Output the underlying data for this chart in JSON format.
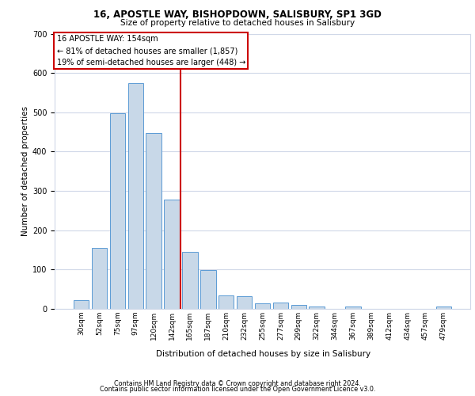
{
  "title1": "16, APOSTLE WAY, BISHOPDOWN, SALISBURY, SP1 3GD",
  "title2": "Size of property relative to detached houses in Salisbury",
  "xlabel": "Distribution of detached houses by size in Salisbury",
  "ylabel": "Number of detached properties",
  "footnote1": "Contains HM Land Registry data © Crown copyright and database right 2024.",
  "footnote2": "Contains public sector information licensed under the Open Government Licence v3.0.",
  "annotation_line1": "16 APOSTLE WAY: 154sqm",
  "annotation_line2": "← 81% of detached houses are smaller (1,857)",
  "annotation_line3": "19% of semi-detached houses are larger (448) →",
  "property_size": 154,
  "bar_color": "#c8d8e8",
  "bar_edge_color": "#5b9bd5",
  "vline_color": "#cc0000",
  "annotation_box_edge": "#cc0000",
  "grid_color": "#d0d8e8",
  "bar_labels": [
    "30sqm",
    "52sqm",
    "75sqm",
    "97sqm",
    "120sqm",
    "142sqm",
    "165sqm",
    "187sqm",
    "210sqm",
    "232sqm",
    "255sqm",
    "277sqm",
    "299sqm",
    "322sqm",
    "344sqm",
    "367sqm",
    "389sqm",
    "412sqm",
    "434sqm",
    "457sqm",
    "479sqm"
  ],
  "bar_values": [
    22,
    155,
    497,
    575,
    447,
    278,
    145,
    99,
    35,
    33,
    15,
    16,
    11,
    6,
    0,
    7,
    0,
    0,
    0,
    0,
    7
  ],
  "ylim": [
    0,
    700
  ],
  "yticks": [
    0,
    100,
    200,
    300,
    400,
    500,
    600,
    700
  ]
}
